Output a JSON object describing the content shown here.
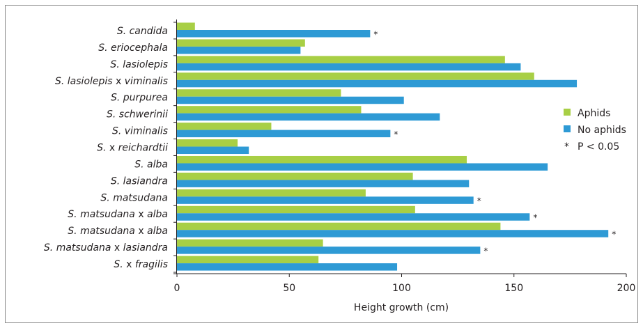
{
  "chart_data": {
    "type": "bar",
    "orientation": "horizontal",
    "categories": [
      "S. candida",
      "S. eriocephala",
      "S. lasiolepis",
      "S. lasiolepis x viminalis",
      "S. purpurea",
      "S. schwerinii",
      "S. viminalis",
      "S. x reichardtii",
      "S. alba",
      "S. lasiandra",
      "S. matsudana",
      "S. matsudana x alba",
      "S. matsudana x alba",
      "S. matsudana x lasiandra",
      "S. x fragilis"
    ],
    "category_parts": [
      [
        [
          "S. candida",
          true
        ]
      ],
      [
        [
          "S. eriocephala",
          true
        ]
      ],
      [
        [
          "S. lasiolepis",
          true
        ]
      ],
      [
        [
          "S. lasiolepis",
          true
        ],
        [
          " x ",
          false
        ],
        [
          "viminalis",
          true
        ]
      ],
      [
        [
          "S. purpurea",
          true
        ]
      ],
      [
        [
          "S. schwerinii",
          true
        ]
      ],
      [
        [
          "S. viminalis",
          true
        ]
      ],
      [
        [
          "S.",
          true
        ],
        [
          " x ",
          false
        ],
        [
          "reichardtii",
          true
        ]
      ],
      [
        [
          "S. alba",
          true
        ]
      ],
      [
        [
          "S. lasiandra",
          true
        ]
      ],
      [
        [
          "S. matsudana",
          true
        ]
      ],
      [
        [
          "S. matsudana",
          true
        ],
        [
          " x ",
          false
        ],
        [
          "alba",
          true
        ]
      ],
      [
        [
          "S. matsudana",
          true
        ],
        [
          " x ",
          false
        ],
        [
          "alba",
          true
        ]
      ],
      [
        [
          "S. matsudana",
          true
        ],
        [
          " x ",
          false
        ],
        [
          "lasiandra",
          true
        ]
      ],
      [
        [
          "S.",
          true
        ],
        [
          " x ",
          false
        ],
        [
          "fragilis",
          true
        ]
      ]
    ],
    "series": [
      {
        "name": "Aphids",
        "color": "#a8cf45",
        "values": [
          8,
          57,
          146,
          159,
          73,
          82,
          42,
          27,
          129,
          105,
          84,
          106,
          144,
          65,
          63
        ]
      },
      {
        "name": "No aphids",
        "color": "#2e9ad5",
        "values": [
          86,
          55,
          153,
          178,
          101,
          117,
          95,
          32,
          165,
          130,
          132,
          157,
          192,
          135,
          98
        ]
      }
    ],
    "significant": [
      true,
      false,
      false,
      false,
      false,
      false,
      true,
      false,
      false,
      false,
      true,
      true,
      true,
      true,
      false
    ],
    "significance_marker": "*",
    "xlabel": "Height growth (cm)",
    "ylabel": "",
    "xlim": [
      0,
      200
    ],
    "xticks": [
      "0",
      "50",
      "100",
      "150",
      "200"
    ],
    "grid": false,
    "legend": {
      "position": "right",
      "items": [
        {
          "label": "Aphids",
          "color": "#a8cf45"
        },
        {
          "label": "No aphids",
          "color": "#2e9ad5"
        },
        {
          "marker": "*",
          "label": "P < 0.05"
        }
      ]
    }
  }
}
